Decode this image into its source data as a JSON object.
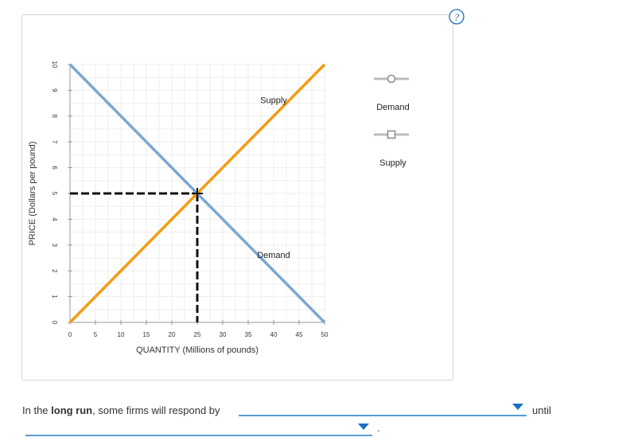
{
  "chart_data": {
    "type": "line",
    "xlabel": "QUANTITY (Millions of pounds)",
    "ylabel": "PRICE (Dollars per pound)",
    "xlim": [
      0,
      50
    ],
    "ylim": [
      0,
      10
    ],
    "x_ticks": [
      0,
      5,
      10,
      15,
      20,
      25,
      30,
      35,
      40,
      45,
      50
    ],
    "y_ticks": [
      0,
      1,
      2,
      3,
      4,
      5,
      6,
      7,
      8,
      9,
      10
    ],
    "grid": true,
    "series": [
      {
        "name": "Demand",
        "color": "#7ba7d1",
        "marker": "circle",
        "points": [
          [
            0,
            10
          ],
          [
            50,
            0
          ]
        ]
      },
      {
        "name": "Supply",
        "color": "#f39c12",
        "marker": "square",
        "points": [
          [
            0,
            0
          ],
          [
            50,
            10
          ]
        ]
      }
    ],
    "annotations": [
      {
        "text": "Supply",
        "x": 40,
        "y": 8.5
      },
      {
        "text": "Demand",
        "x": 40,
        "y": 2.5
      }
    ],
    "equilibrium": {
      "x": 25,
      "y": 5
    },
    "legend": {
      "position": "right",
      "items": [
        "Demand",
        "Supply"
      ]
    }
  },
  "question": {
    "prefix": "In the ",
    "bold": "long run",
    "mid": ", some firms will respond by",
    "after_first_dropdown": "until",
    "end": "."
  },
  "dropdowns": {
    "first_value": "",
    "second_value": ""
  },
  "icons": {
    "help": "help-icon"
  }
}
